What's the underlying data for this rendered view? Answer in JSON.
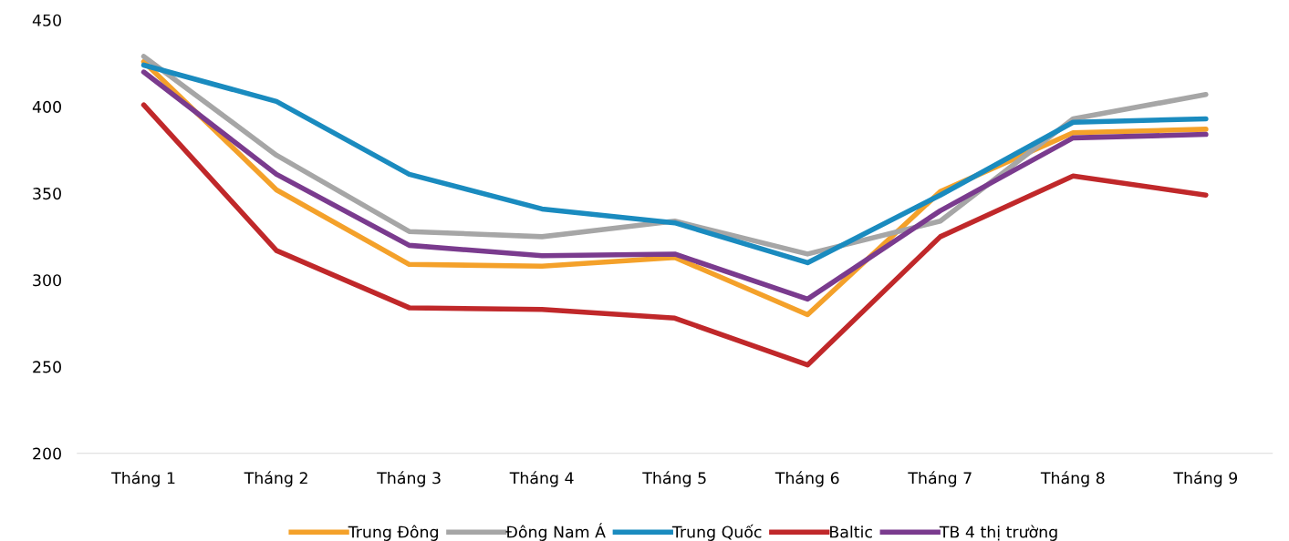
{
  "chart_data": {
    "type": "line",
    "categories": [
      "Tháng 1",
      "Tháng 2",
      "Tháng 3",
      "Tháng 4",
      "Tháng 5",
      "Tháng 6",
      "Tháng 7",
      "Tháng 8",
      "Tháng 9"
    ],
    "series": [
      {
        "name": "Trung Đông",
        "color": "#f4a12a",
        "values": [
          426,
          352,
          309,
          308,
          313,
          280,
          351,
          385,
          387
        ]
      },
      {
        "name": "Đông Nam Á",
        "color": "#a6a6a6",
        "values": [
          429,
          372,
          328,
          325,
          334,
          315,
          334,
          393,
          407
        ]
      },
      {
        "name": "Trung Quốc",
        "color": "#1a8bbf",
        "values": [
          424,
          403,
          361,
          341,
          333,
          310,
          349,
          391,
          393
        ]
      },
      {
        "name": "Baltic",
        "color": "#c0282a",
        "values": [
          401,
          317,
          284,
          283,
          278,
          251,
          325,
          360,
          349
        ]
      },
      {
        "name": "TB 4 thị trường",
        "color": "#7a3b8e",
        "values": [
          420,
          361,
          320,
          314,
          315,
          289,
          340,
          382,
          384
        ]
      }
    ],
    "ylim": [
      200,
      450
    ],
    "yticks": [
      200,
      250,
      300,
      350,
      400,
      450
    ],
    "grid": false,
    "legend": "bottom",
    "marker": "none",
    "line_style": "solid"
  }
}
